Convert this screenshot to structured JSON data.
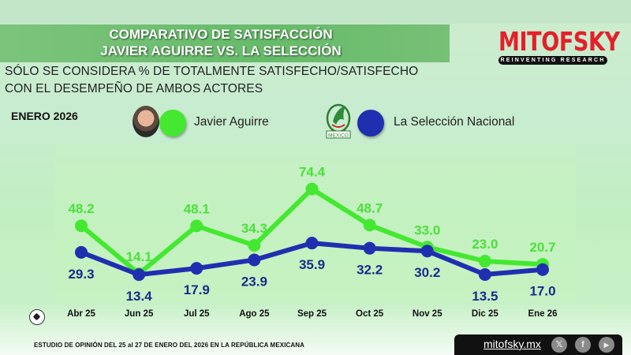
{
  "header": {
    "title_line1": "COMPARATIVO DE SATISFACCIÓN",
    "title_line2": "JAVIER AGUIRRE VS. LA SELECCIÓN",
    "subtitle_line1": "SÓLO SE CONSIDERA % DE TOTALMENTE SATISFECHO/SATISFECHO",
    "subtitle_line2": "CON EL DESEMPEÑO DE AMBOS ACTORES",
    "date": "ENERO 2026"
  },
  "brand": {
    "name": "MITOFSKY",
    "tagline": "REINVENTING RESEARCH",
    "color": "#e3202a"
  },
  "legend": [
    {
      "label": "Javier Aguirre",
      "color": "#44e830",
      "icon": "person-photo"
    },
    {
      "label": "La Selección Nacional",
      "color": "#1f2fb0",
      "icon": "mexico-crest",
      "crest_text": "MEXICO"
    }
  ],
  "chart_data": {
    "type": "line",
    "title": "COMPARATIVO DE SATISFACCIÓN JAVIER AGUIRRE VS. LA SELECCIÓN",
    "xlabel": "",
    "ylabel": "% Totalmente satisfecho/satisfecho",
    "categories": [
      "Abr 25",
      "Jun 25",
      "Jul 25",
      "Ago 25",
      "Sep 25",
      "Oct 25",
      "Nov 25",
      "Dic 25",
      "Ene 26"
    ],
    "series": [
      {
        "name": "Javier Aguirre",
        "color": "#44e830",
        "values": [
          48.2,
          14.1,
          48.1,
          34.3,
          74.4,
          48.7,
          33.0,
          23.0,
          20.7
        ]
      },
      {
        "name": "La Selección Nacional",
        "color": "#1f2fb0",
        "values": [
          29.3,
          13.4,
          17.9,
          23.9,
          35.9,
          32.2,
          30.2,
          13.5,
          17.0
        ]
      }
    ],
    "data_labels": true,
    "grid": false,
    "legend_position": "top"
  },
  "footer": {
    "note": "ESTUDIO DE OPINIÓN DEL 25 al 27 DE ENERO DEL 2026 EN LA REPÚBLICA MEXICANA",
    "website": "mitofsky.mx",
    "social": [
      {
        "name": "x",
        "glyph": "𝕏"
      },
      {
        "name": "facebook",
        "glyph": "f"
      },
      {
        "name": "youtube",
        "glyph": "▶"
      }
    ]
  }
}
